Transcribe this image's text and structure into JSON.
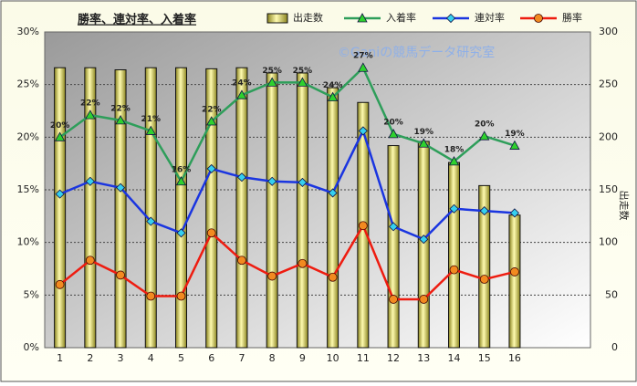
{
  "chart_data": {
    "type": "bar-line",
    "title": "勝率、連対率、入着率",
    "watermark": "©Ganiの競馬データ研究室",
    "y2label": "出走数",
    "categories": [
      "1",
      "2",
      "3",
      "4",
      "5",
      "6",
      "7",
      "8",
      "9",
      "10",
      "11",
      "12",
      "13",
      "14",
      "15",
      "16",
      null,
      null
    ],
    "ylim": [
      0,
      30
    ],
    "yticks": [
      {
        "value": 0,
        "label": "0%"
      },
      {
        "value": 5,
        "label": "5%"
      },
      {
        "value": 10,
        "label": "10%"
      },
      {
        "value": 15,
        "label": "15%"
      },
      {
        "value": 20,
        "label": "20%"
      },
      {
        "value": 25,
        "label": "25%"
      },
      {
        "value": 30,
        "label": "30%"
      }
    ],
    "y2lim": [
      0,
      300
    ],
    "y2ticks": [
      0,
      50,
      100,
      150,
      200,
      250,
      300
    ],
    "grid": true,
    "series": [
      {
        "name": "出走数",
        "type": "bar",
        "axis": "y2",
        "color": "#e8e070",
        "values": [
          266,
          266,
          264,
          266,
          266,
          265,
          266,
          261,
          261,
          247,
          233,
          192,
          196,
          176,
          154,
          126,
          null,
          null
        ]
      },
      {
        "name": "入着率",
        "type": "line",
        "marker": "triangle",
        "color": "#2e9e5a",
        "values": [
          20,
          22.1,
          21.6,
          20.6,
          15.8,
          21.5,
          24,
          25.2,
          25.2,
          23.8,
          26.6,
          20.3,
          19.4,
          17.7,
          20.1,
          19.2,
          null,
          null
        ],
        "value_labels": [
          "20%",
          "22%",
          "22%",
          "21%",
          "16%",
          "22%",
          "24%",
          "25%",
          "25%",
          "24%",
          "27%",
          "20%",
          "19%",
          "18%",
          "20%",
          "19%",
          null,
          null
        ]
      },
      {
        "name": "連対率",
        "type": "line",
        "marker": "diamond",
        "color": "#1a35e0",
        "values": [
          14.6,
          15.8,
          15.2,
          12,
          10.9,
          17,
          16.2,
          15.8,
          15.7,
          14.7,
          20.6,
          11.5,
          10.3,
          13.2,
          13,
          12.8,
          null,
          null
        ]
      },
      {
        "name": "勝率",
        "type": "line",
        "marker": "circle",
        "color": "#ee1c10",
        "values": [
          6,
          8.3,
          6.9,
          4.9,
          4.9,
          10.9,
          8.3,
          6.8,
          8,
          6.7,
          11.6,
          4.6,
          4.6,
          7.4,
          6.5,
          7.2,
          null,
          null
        ]
      }
    ]
  }
}
